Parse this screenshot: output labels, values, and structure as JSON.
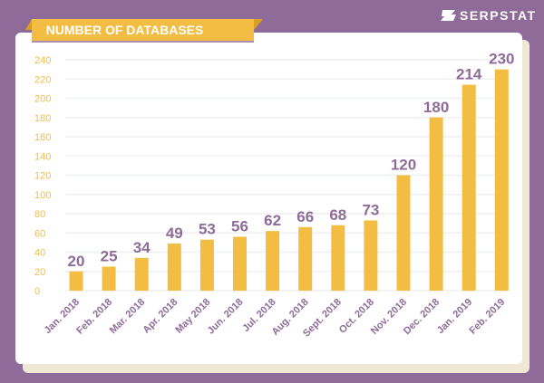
{
  "brand": {
    "name": "SERPSTAT",
    "icon": "serpstat-logo-icon"
  },
  "colors": {
    "background": "#8f6b99",
    "bar": "#f2bd42",
    "label": "#8f6b99",
    "tick": "#f2bd42",
    "grid": "#eef1f1"
  },
  "chart_data": {
    "type": "bar",
    "title": "NUMBER OF DATABASES",
    "categories": [
      "Jan. 2018",
      "Feb. 2018",
      "Mar. 2018",
      "Apr. 2018",
      "May 2018",
      "Jun. 2018",
      "Jul. 2018",
      "Aug. 2018",
      "Sept. 2018",
      "Oct. 2018",
      "Nov. 2018",
      "Dec. 2018",
      "Jan. 2019",
      "Feb. 2019"
    ],
    "values": [
      20,
      25,
      34,
      49,
      53,
      56,
      62,
      66,
      68,
      73,
      120,
      180,
      214,
      230
    ],
    "yticks": [
      0,
      20,
      40,
      60,
      80,
      100,
      120,
      140,
      160,
      180,
      200,
      220,
      240
    ],
    "ylim": [
      0,
      240
    ],
    "grid": true,
    "data_labels": true
  }
}
